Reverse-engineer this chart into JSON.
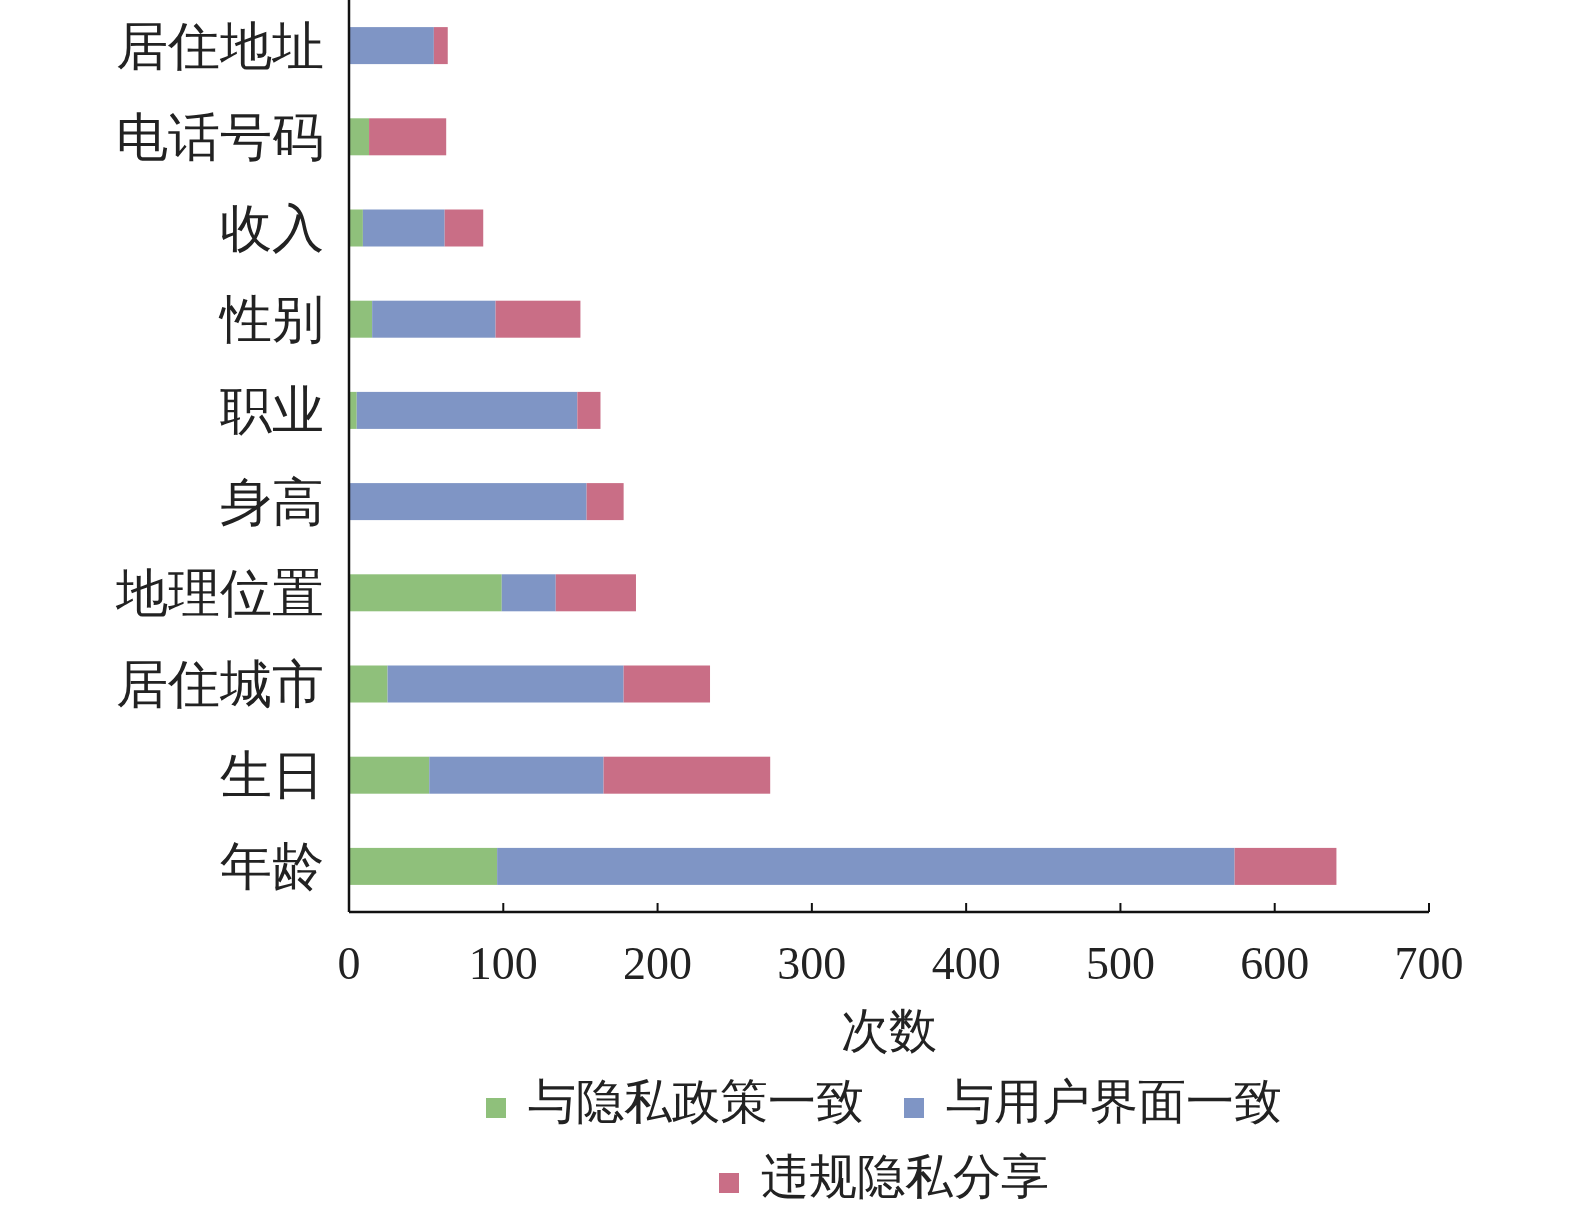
{
  "chart_data": {
    "type": "bar",
    "orientation": "horizontal",
    "stacked": true,
    "xlabel": "次数",
    "categories": [
      "居住地址",
      "电话号码",
      "收入",
      "性别",
      "职业",
      "身高",
      "地理位置",
      "居住城市",
      "生日",
      "年龄"
    ],
    "series": [
      {
        "name": "与隐私政策一致",
        "color": "#8fc07b",
        "values": [
          0,
          13,
          9,
          15,
          5,
          0,
          99,
          25,
          52,
          96
        ]
      },
      {
        "name": "与用户界面一致",
        "color": "#7f95c5",
        "values": [
          55,
          0,
          53,
          80,
          143,
          154,
          35,
          153,
          113,
          478
        ]
      },
      {
        "name": "违规隐私分享",
        "color": "#c96e86",
        "values": [
          9,
          50,
          25,
          55,
          15,
          24,
          52,
          56,
          108,
          66
        ]
      }
    ],
    "xlim": [
      0,
      700
    ],
    "xticks": [
      0,
      100,
      200,
      300,
      400,
      500,
      600,
      700
    ],
    "grid": false,
    "legend": "bottom"
  }
}
